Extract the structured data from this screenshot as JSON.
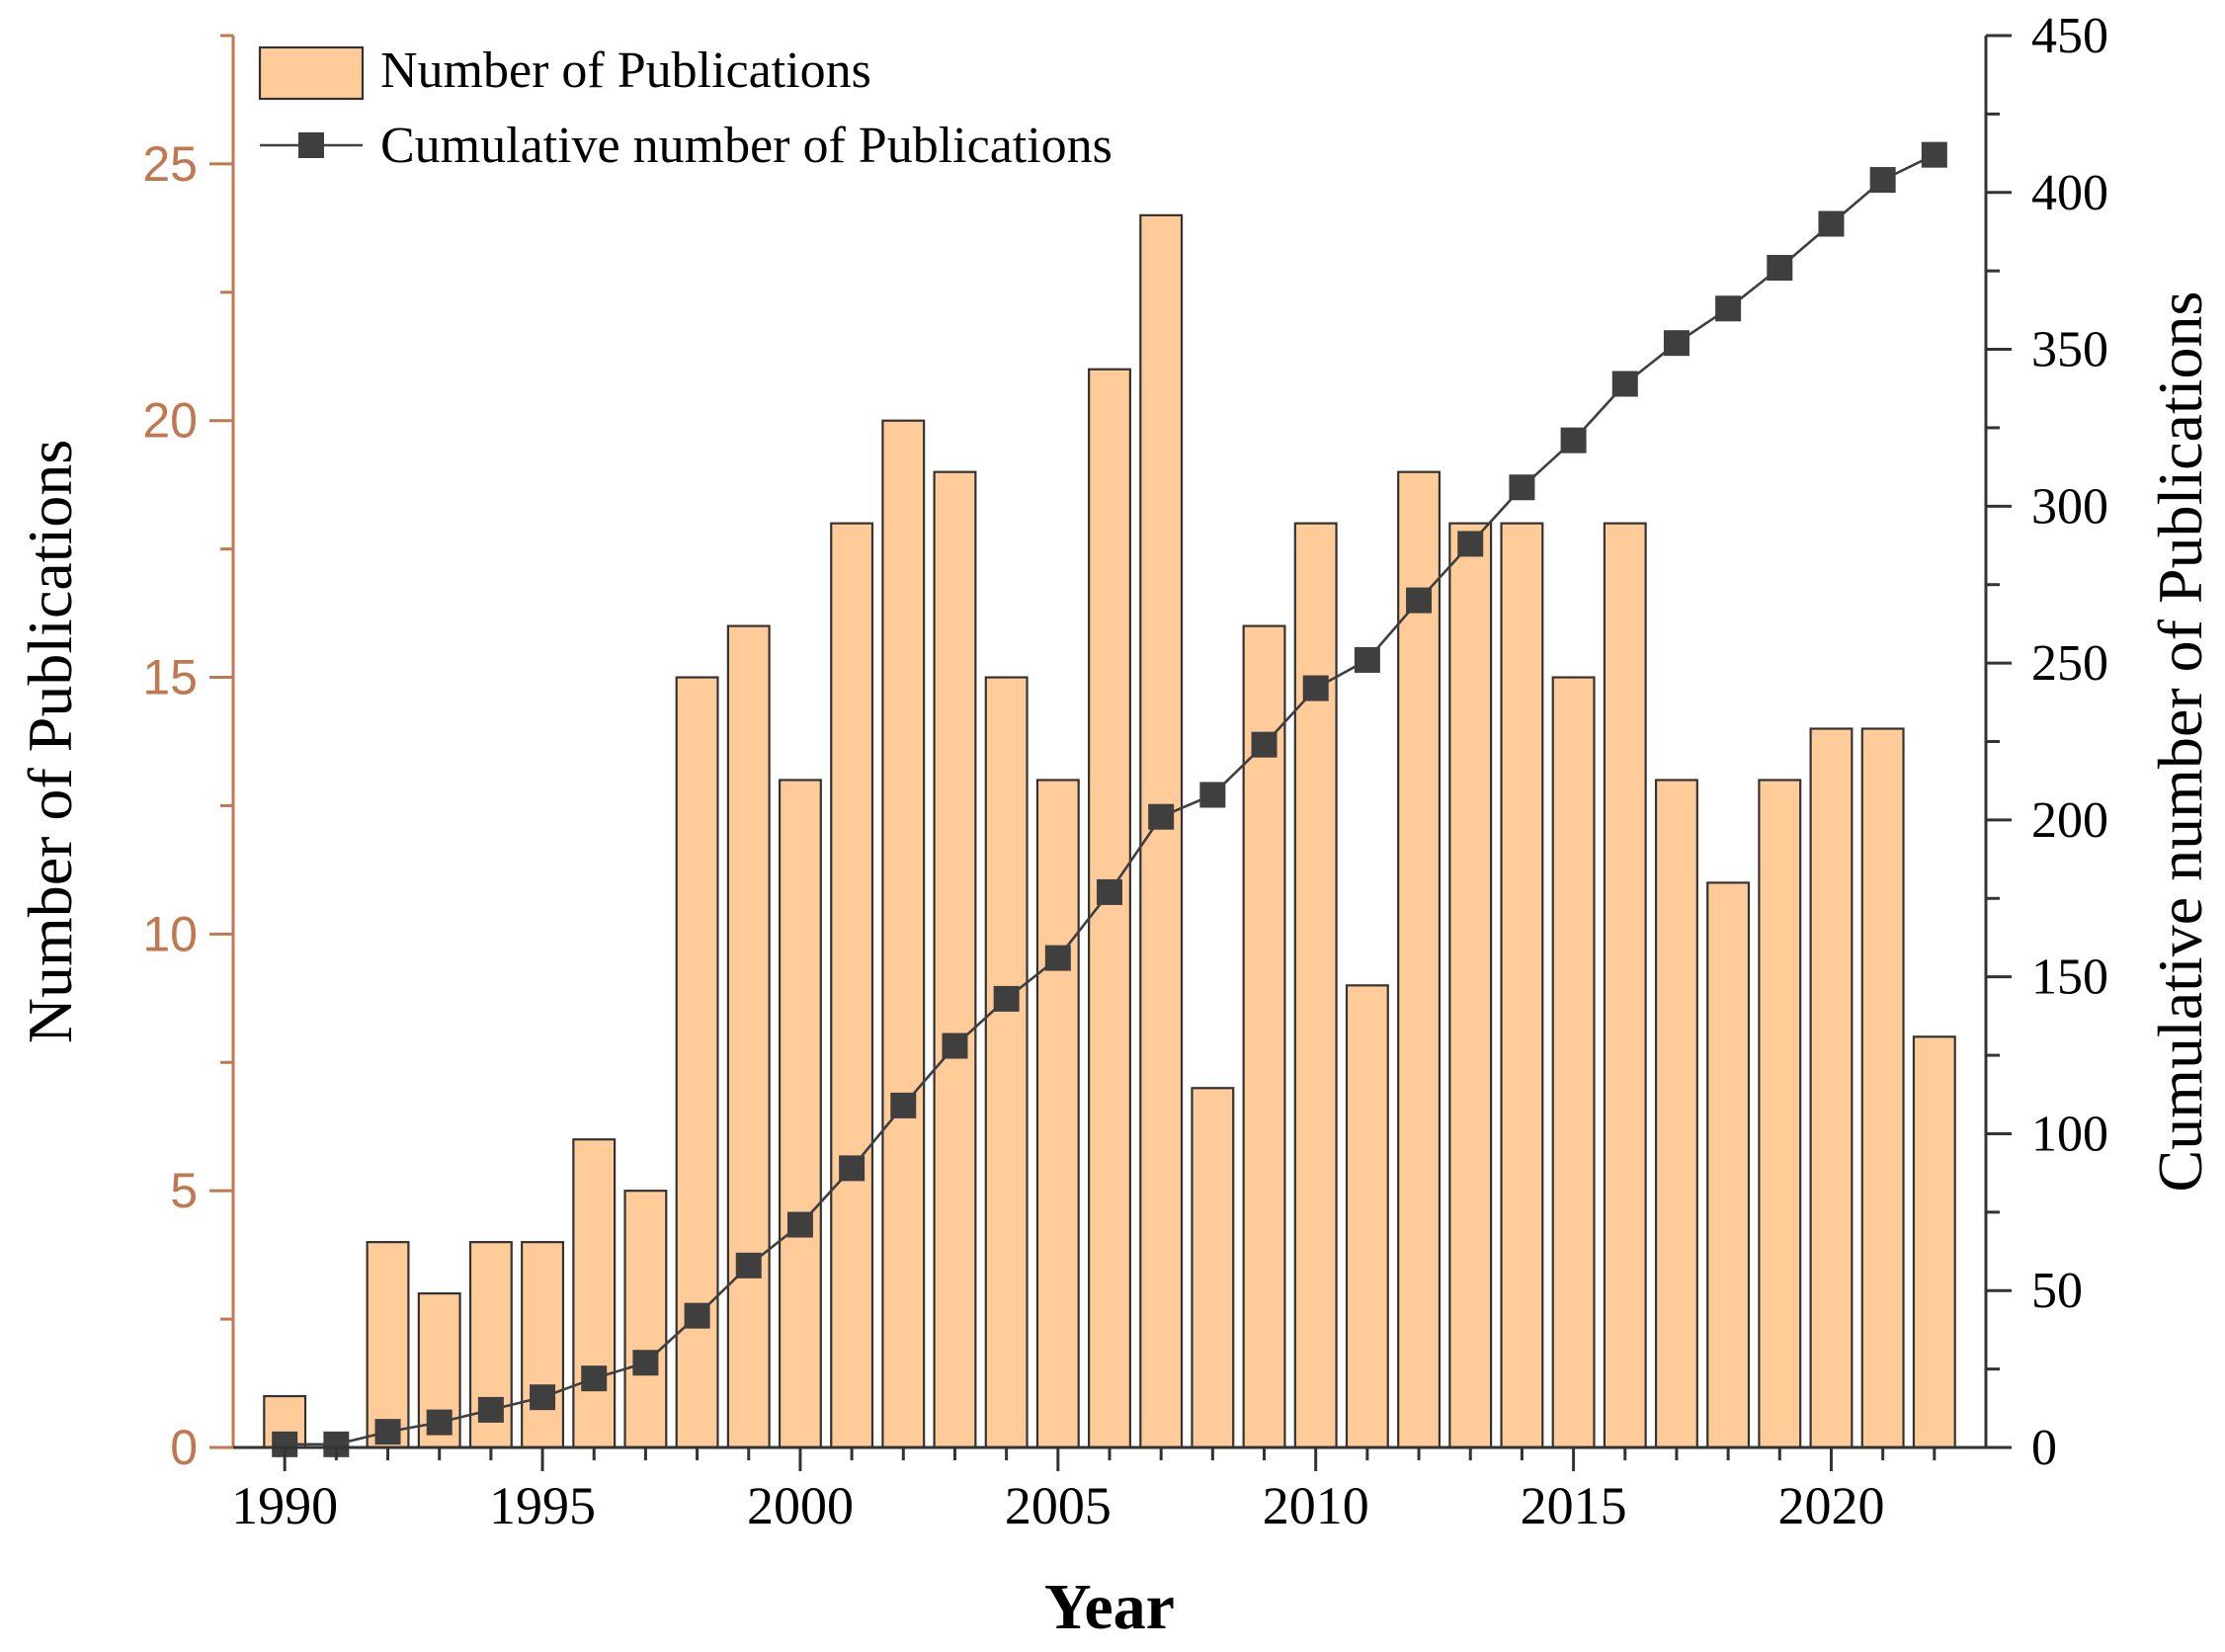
{
  "chart_data": {
    "type": "bar",
    "title": "",
    "xlabel": "Year",
    "ylabel": "Number of Publications",
    "y2label": "Cumulative number of Publications",
    "x": [
      1990,
      1991,
      1992,
      1993,
      1994,
      1995,
      1996,
      1997,
      1998,
      1999,
      2000,
      2001,
      2002,
      2003,
      2004,
      2005,
      2006,
      2007,
      2008,
      2009,
      2010,
      2011,
      2012,
      2013,
      2014,
      2015,
      2016,
      2017,
      2018,
      2019,
      2020,
      2021,
      2022
    ],
    "series": [
      {
        "name": "Number of Publications",
        "type": "bar",
        "axis": "left",
        "values": [
          1,
          0,
          4,
          3,
          4,
          4,
          6,
          5,
          15,
          16,
          13,
          18,
          20,
          19,
          15,
          13,
          21,
          24,
          7,
          16,
          18,
          9,
          19,
          18,
          18,
          15,
          18,
          13,
          11,
          13,
          14,
          14,
          8
        ]
      },
      {
        "name": "Cumulative number of Publications",
        "type": "line",
        "axis": "right",
        "values": [
          1,
          1,
          5,
          8,
          12,
          16,
          22,
          27,
          42,
          58,
          71,
          89,
          109,
          128,
          143,
          156,
          177,
          201,
          208,
          224,
          242,
          251,
          270,
          288,
          306,
          321,
          339,
          352,
          363,
          376,
          390,
          404,
          412
        ]
      }
    ],
    "xlim": [
      1989,
      2023
    ],
    "ylim": [
      0,
      27.5
    ],
    "y2lim": [
      0,
      450
    ],
    "xticks": [
      1990,
      1995,
      2000,
      2005,
      2010,
      2015,
      2020
    ],
    "yticks": [
      0,
      5,
      10,
      15,
      20,
      25
    ],
    "y2ticks": [
      0,
      50,
      100,
      150,
      200,
      250,
      300,
      350,
      400,
      450
    ],
    "legend": {
      "position": "top-left",
      "entries": [
        "Number of Publications",
        "Cumulative number of Publications"
      ]
    },
    "grid": false,
    "colors": {
      "bar_fill": "#FFCC99",
      "bar_edge": "#333333",
      "line": "#3F3F3F",
      "left_axis": "#C07850",
      "left_axis_label": "#000000",
      "right_axis": "#333333",
      "bottom_axis": "#333333"
    }
  }
}
